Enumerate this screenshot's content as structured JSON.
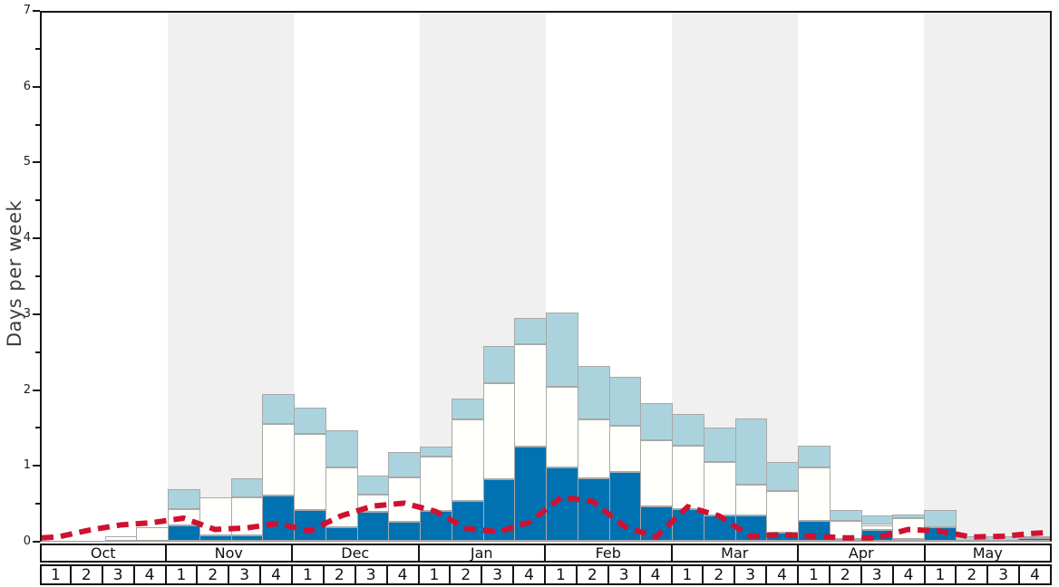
{
  "chart_data": {
    "type": "bar",
    "stacked": true,
    "title": "",
    "xlabel": "",
    "ylabel": "Days per week",
    "ylim": [
      0,
      7
    ],
    "y_major_ticks": [
      0,
      1,
      2,
      3,
      4,
      5,
      6,
      7
    ],
    "y_minor_step": 0.5,
    "grid": false,
    "legend": "none",
    "months": [
      "Oct",
      "Nov",
      "Dec",
      "Jan",
      "Feb",
      "Mar",
      "Apr",
      "May"
    ],
    "shaded_months": [
      "Nov",
      "Jan",
      "Mar",
      "May"
    ],
    "weeks_per_month": 4,
    "week_labels": [
      "1",
      "2",
      "3",
      "4"
    ],
    "series": [
      {
        "name": "dark-blue-segment",
        "color": "#0072b2",
        "values": [
          0,
          0,
          0,
          0,
          0.2,
          0.07,
          0.07,
          0.6,
          0.41,
          0.18,
          0.38,
          0.25,
          0.4,
          0.53,
          0.82,
          1.25,
          0.97,
          0.83,
          0.91,
          0.46,
          0.42,
          0.34,
          0.34,
          0.11,
          0.26,
          0.02,
          0.14,
          0.02,
          0.18,
          0,
          0,
          0.04
        ]
      },
      {
        "name": "white-segment",
        "color": "#fffffc",
        "values": [
          0,
          0,
          0.06,
          0.18,
          0.22,
          0.51,
          0.51,
          0.95,
          1.01,
          0.79,
          0.23,
          0.59,
          0.72,
          1.08,
          1.27,
          1.35,
          1.07,
          0.78,
          0.62,
          0.87,
          0.84,
          0.71,
          0.41,
          0.55,
          0.71,
          0.25,
          0.07,
          0.28,
          0,
          0,
          0,
          0
        ]
      },
      {
        "name": "light-blue-segment",
        "color": "#abd3de",
        "values": [
          0,
          0,
          0,
          0,
          0.27,
          0,
          0.25,
          0.4,
          0.34,
          0.49,
          0.26,
          0.34,
          0.13,
          0.27,
          0.49,
          0.35,
          0.98,
          0.71,
          0.64,
          0.49,
          0.42,
          0.45,
          0.87,
          0.39,
          0.29,
          0.14,
          0.13,
          0.05,
          0.23,
          0.06,
          0.06,
          0.02
        ]
      }
    ],
    "line": {
      "name": "red-dashed-line",
      "color": "#d01130",
      "style": "dashed",
      "dash": [
        13,
        8
      ],
      "width": 6,
      "values": [
        0.05,
        0.14,
        0.21,
        0.24,
        0.3,
        0.15,
        0.17,
        0.23,
        0.13,
        0.33,
        0.46,
        0.5,
        0.39,
        0.16,
        0.12,
        0.25,
        0.58,
        0.52,
        0.19,
        0.05,
        0.45,
        0.33,
        0.06,
        0.08,
        0.06,
        0.04,
        0.04,
        0.15,
        0.13,
        0.05,
        0.06,
        0.1
      ],
      "edge_start": 0.04,
      "edge_end": 0.11
    },
    "colors": {
      "band_gray": "#f0f0f0",
      "bar_outline": "#a8a8a8",
      "axis_border": "#151515",
      "baseline": "#999999"
    }
  }
}
